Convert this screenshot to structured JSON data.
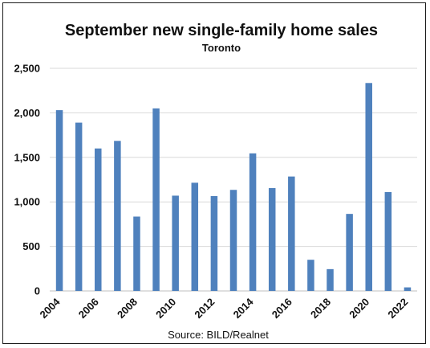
{
  "chart_data": {
    "type": "bar",
    "title": "September new single-family home sales",
    "subtitle": "Toronto",
    "source": "Source:  BILD/Realnet",
    "categories": [
      "2004",
      "2005",
      "2006",
      "2007",
      "2008",
      "2009",
      "2010",
      "2011",
      "2012",
      "2013",
      "2014",
      "2015",
      "2016",
      "2017",
      "2018",
      "2019",
      "2020",
      "2021",
      "2022"
    ],
    "x_tick_labels": [
      "2004",
      "",
      "2006",
      "",
      "2008",
      "",
      "2010",
      "",
      "2012",
      "",
      "2014",
      "",
      "2016",
      "",
      "2018",
      "",
      "2020",
      "",
      "2022"
    ],
    "values": [
      2030,
      1890,
      1600,
      1685,
      835,
      2050,
      1070,
      1215,
      1065,
      1135,
      1545,
      1155,
      1285,
      350,
      245,
      865,
      2335,
      1110,
      40
    ],
    "ylim": [
      0,
      2500
    ],
    "yticks": [
      0,
      500,
      1000,
      1500,
      2000,
      2500
    ],
    "ytick_labels": [
      "0",
      "500",
      "1,000",
      "1,500",
      "2,000",
      "2,500"
    ],
    "grid": true,
    "bar_color": "#4f81bd",
    "grid_color": "#d9d9d9"
  }
}
